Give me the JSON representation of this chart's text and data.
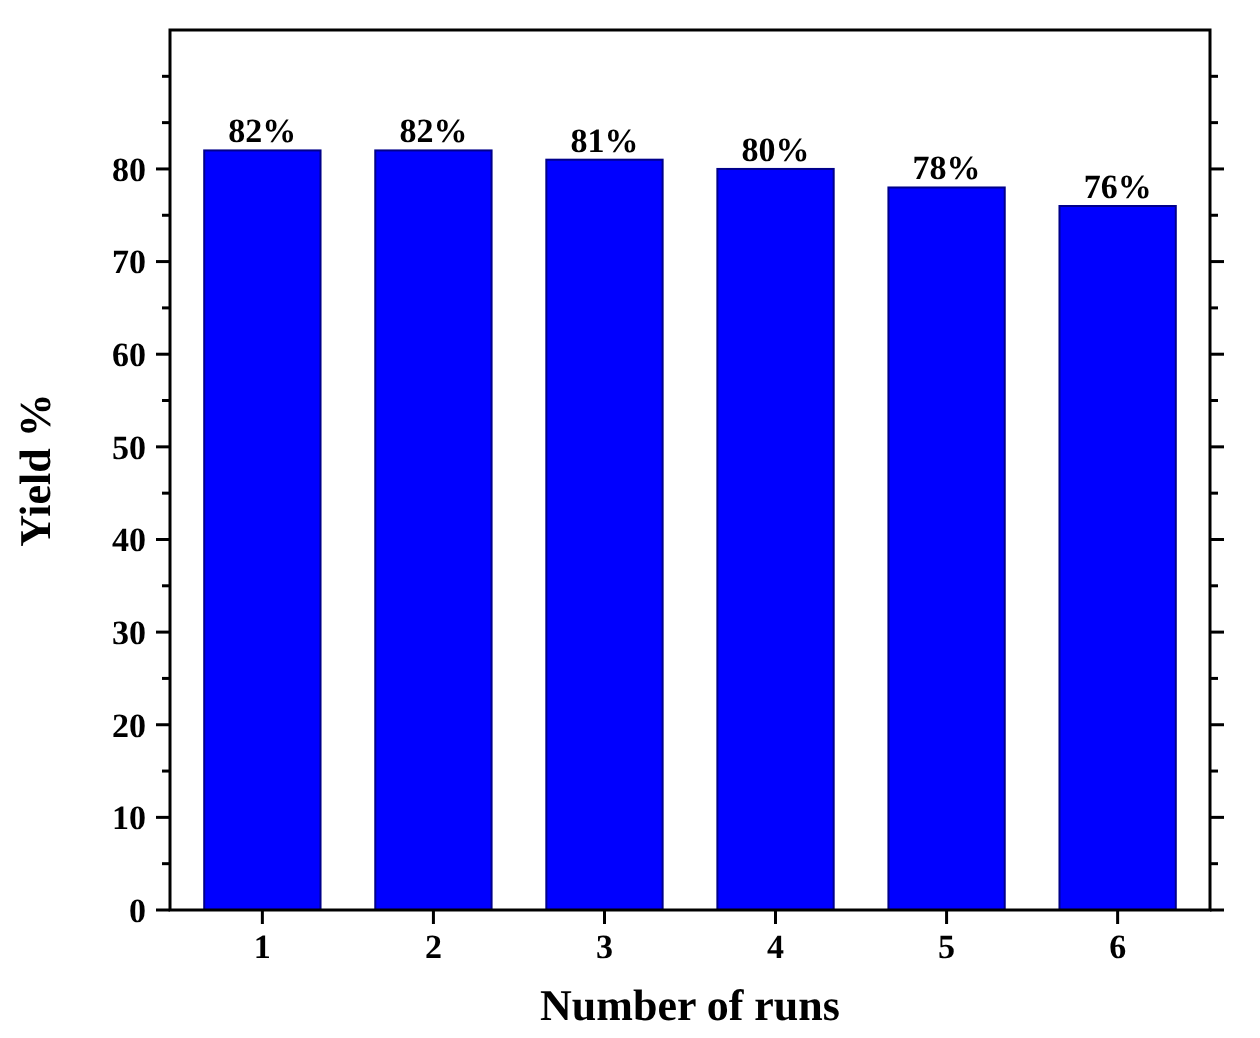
{
  "chart_data": {
    "type": "bar",
    "xlabel": "Number of runs",
    "ylabel": "Yield %",
    "categories": [
      "1",
      "2",
      "3",
      "4",
      "5",
      "6"
    ],
    "values": [
      82,
      82,
      81,
      80,
      78,
      76
    ],
    "value_labels": [
      "82%",
      "82%",
      "81%",
      "80%",
      "78%",
      "76%"
    ],
    "color": "#0000ff",
    "ylim": [
      0,
      95
    ],
    "yticks": [
      0,
      {
        "value": 5,
        "label": null
      },
      10,
      {
        "value": 15,
        "label": null
      },
      20,
      {
        "value": 25,
        "label": null
      },
      30,
      {
        "value": 35,
        "label": null
      },
      40,
      {
        "value": 45,
        "label": null
      },
      50,
      {
        "value": 55,
        "label": null
      },
      60,
      {
        "value": 65,
        "label": null
      },
      70,
      {
        "value": 75,
        "label": null
      },
      80,
      {
        "value": 85,
        "label": null
      },
      {
        "value": 90,
        "label": null
      }
    ],
    "grid": false
  }
}
